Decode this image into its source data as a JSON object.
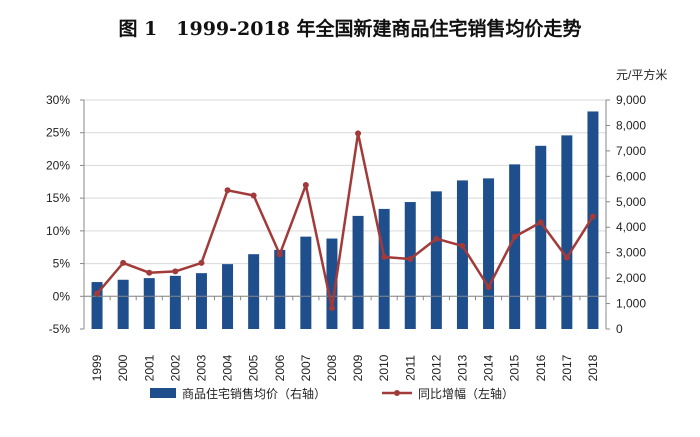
{
  "chart_data": {
    "type": "bar+line",
    "title": "图 1　1999-2018 年全国新建商品住宅销售均价走势",
    "categories": [
      "1999",
      "2000",
      "2001",
      "2002",
      "2003",
      "2004",
      "2005",
      "2006",
      "2007",
      "2008",
      "2009",
      "2010",
      "2011",
      "2012",
      "2013",
      "2014",
      "2015",
      "2016",
      "2017",
      "2018"
    ],
    "series": [
      {
        "name": "商品住宅销售均价（右轴）",
        "type": "bar",
        "axis": "right",
        "color": "#1f4e8c",
        "values": [
          1845,
          1935,
          2000,
          2090,
          2195,
          2550,
          2940,
          3110,
          3630,
          3555,
          4445,
          4720,
          4990,
          5410,
          5840,
          5920,
          6470,
          7200,
          7610,
          8550
        ]
      },
      {
        "name": "同比增幅（左轴）",
        "type": "line",
        "axis": "left",
        "color": "#a33a3a",
        "values": [
          0.4,
          5.1,
          3.6,
          3.8,
          5.1,
          16.2,
          15.4,
          6.4,
          17.0,
          -1.8,
          24.9,
          6.0,
          5.7,
          8.8,
          7.7,
          1.4,
          9.1,
          11.3,
          5.9,
          12.2
        ]
      }
    ],
    "left_axis": {
      "ylim": [
        -5,
        30
      ],
      "ticks": [
        "-5%",
        "0%",
        "5%",
        "10%",
        "15%",
        "20%",
        "25%",
        "30%"
      ]
    },
    "right_axis": {
      "unit": "元/平方米",
      "ylim": [
        0,
        9000
      ],
      "ticks": [
        "0",
        "1,000",
        "2,000",
        "3,000",
        "4,000",
        "5,000",
        "6,000",
        "7,000",
        "8,000",
        "9,000"
      ]
    },
    "grid": true,
    "legend": "bottom"
  }
}
